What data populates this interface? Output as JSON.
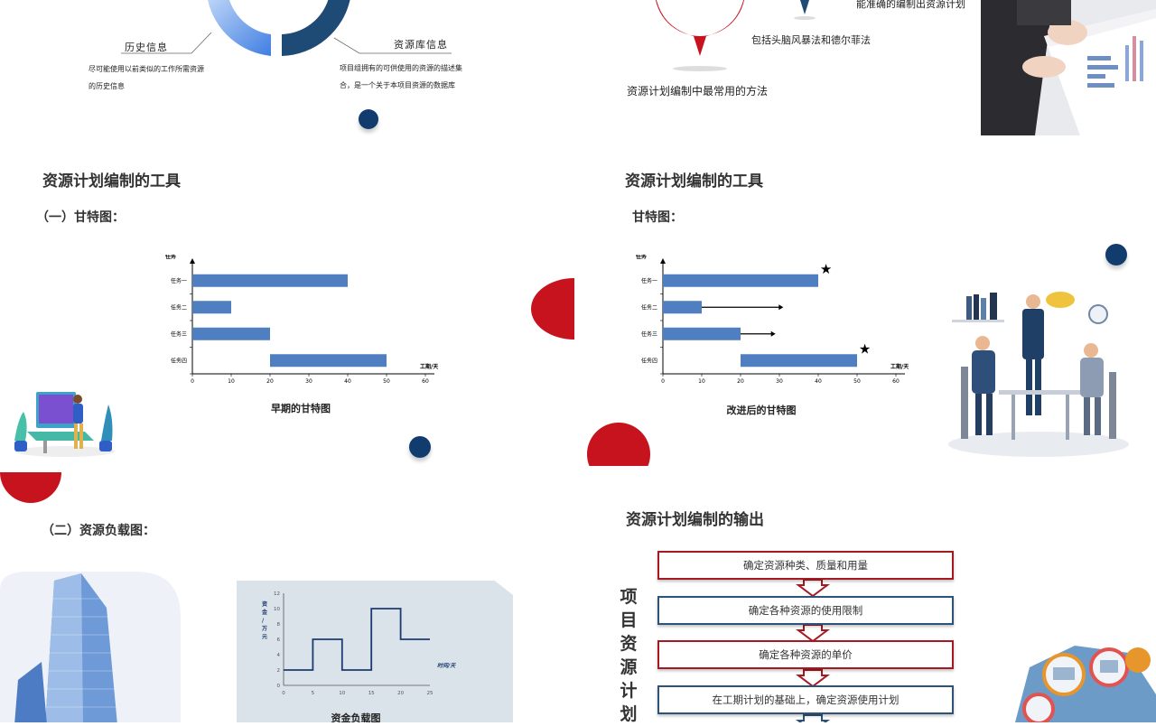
{
  "panel1": {
    "history_label": "历史信息",
    "history_desc": [
      "尽可能使用以前类似的工作所需资源",
      "的历史信息"
    ],
    "resource_label": "资源库信息",
    "resource_desc": [
      "项目组拥有的可供使用的资源的描述集",
      "合，是一个关于本项目资源的数据库"
    ]
  },
  "panel2": {
    "text_top": "能准确的编制出资源计划",
    "text_mid": "包括头脑风暴法和德尔菲法",
    "text_bottom": "资源计划编制中最常用的方法"
  },
  "panel3": {
    "title": "资源计划编制的工具",
    "subtitle": "（一）甘特图：",
    "caption": "早期的甘特图"
  },
  "panel4": {
    "title": "资源计划编制的工具",
    "subtitle": "甘特图：",
    "caption": "改进后的甘特图"
  },
  "panel5": {
    "subtitle": "（二）资源负载图：",
    "caption": "资金负载图"
  },
  "panel6": {
    "title": "资源计划编制的输出",
    "vertical_title": [
      "项",
      "目",
      "资",
      "源",
      "计",
      "划"
    ],
    "flow_steps": [
      "确定资源种类、质量和用量",
      "确定各种资源的使用限制",
      "确定各种资源的单价",
      "在工期计划的基础上，确定资源使用计划"
    ]
  },
  "chart_data": [
    {
      "type": "bar",
      "orientation": "horizontal-gantt",
      "y_axis_label": "任务",
      "x_axis_label": "工期/天",
      "categories": [
        "任务一",
        "任务二",
        "任务三",
        "任务四"
      ],
      "series": [
        {
          "start": [
            0,
            0,
            0,
            20
          ],
          "end": [
            40,
            10,
            20,
            50
          ]
        }
      ],
      "xlim": [
        0,
        60
      ],
      "xticks": [
        0,
        10,
        20,
        30,
        40,
        50,
        60
      ],
      "color": "#4f7fc0"
    },
    {
      "type": "bar",
      "orientation": "horizontal-gantt",
      "y_axis_label": "任务",
      "x_axis_label": "工期/天",
      "categories": [
        "任务一",
        "任务二",
        "任务三",
        "任务四"
      ],
      "series": [
        {
          "start": [
            0,
            0,
            0,
            20
          ],
          "end": [
            40,
            10,
            20,
            50
          ]
        }
      ],
      "arrows_to": [
        null,
        31,
        29,
        null
      ],
      "stars_at": [
        42,
        null,
        null,
        52
      ],
      "xlim": [
        0,
        60
      ],
      "xticks": [
        0,
        10,
        20,
        30,
        40,
        50,
        60
      ],
      "color": "#4f7fc0"
    },
    {
      "type": "line",
      "step": true,
      "y_axis_label": "资金/万元",
      "x_axis_label": "时间/天",
      "x": [
        0,
        5,
        5,
        10,
        10,
        15,
        15,
        20,
        20,
        25
      ],
      "y": [
        2,
        2,
        6,
        6,
        2,
        2,
        10,
        10,
        6,
        6
      ],
      "xlim": [
        0,
        25
      ],
      "ylim": [
        0,
        12
      ],
      "xticks": [
        0,
        5,
        10,
        15,
        20,
        25
      ],
      "yticks": [
        0,
        2,
        4,
        6,
        8,
        10,
        12
      ],
      "color": "#1d3b70"
    }
  ]
}
